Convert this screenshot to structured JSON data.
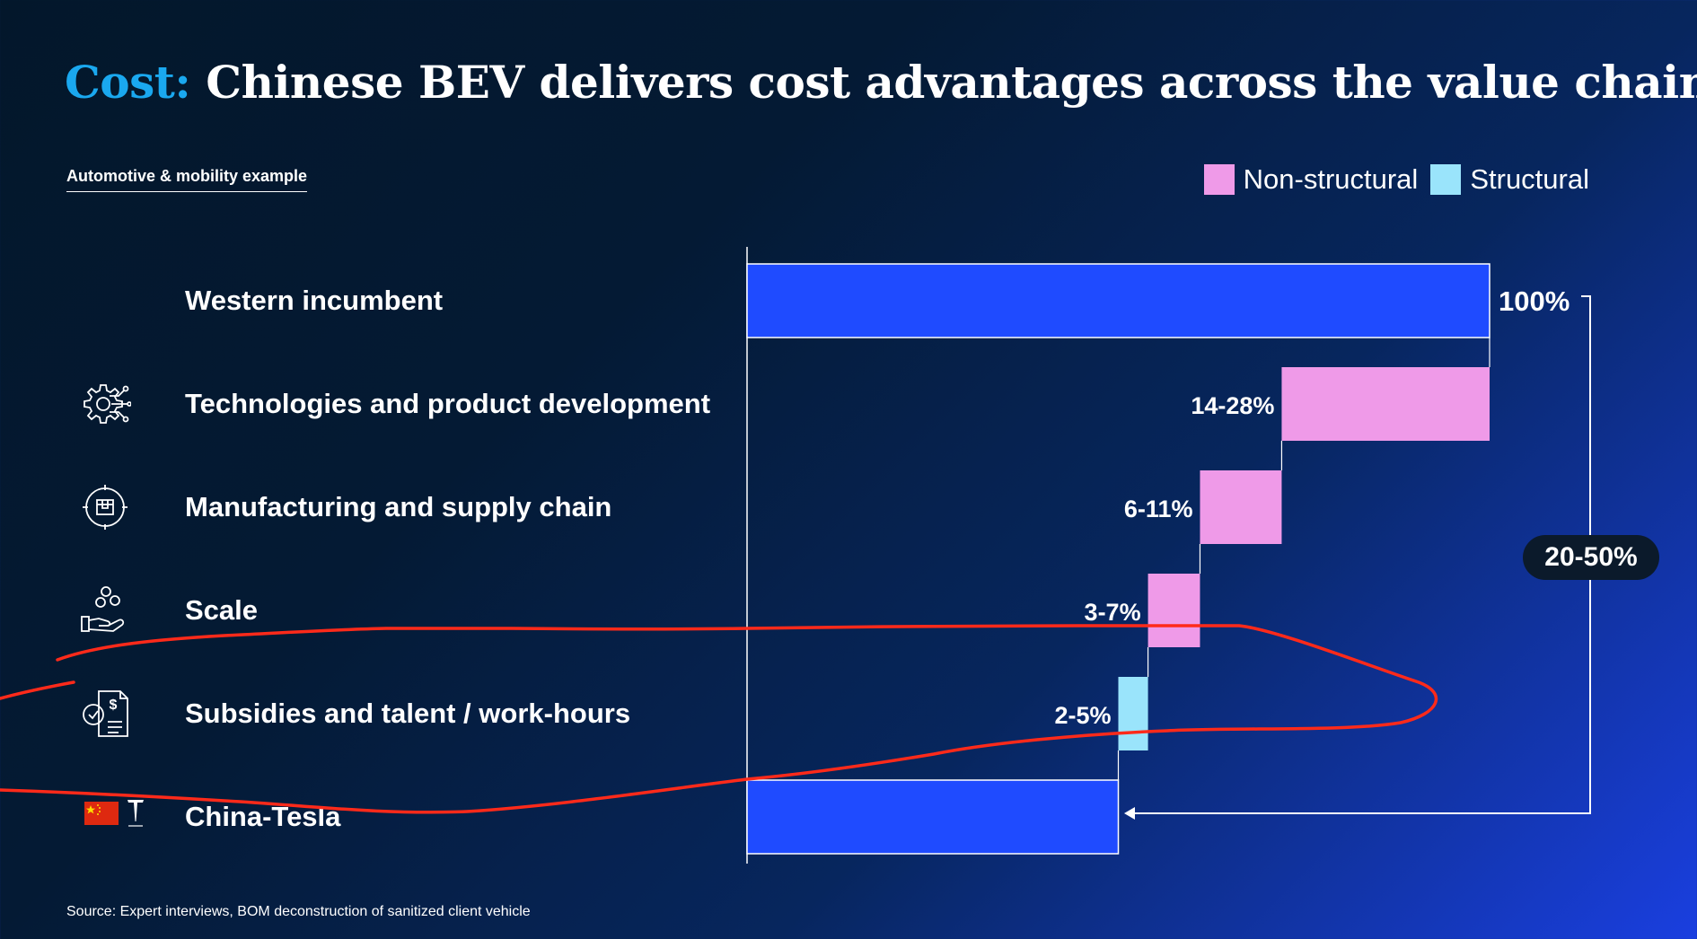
{
  "header": {
    "title_accent": "Cost:",
    "title_rest": "Chinese BEV delivers cost advantages across the value chain",
    "subtitle": "Automotive & mobility example",
    "source": "Source: Expert interviews, BOM deconstruction of sanitized client vehicle"
  },
  "legend": [
    {
      "label": "Non-structural",
      "color": "#ef9ae8"
    },
    {
      "label": "Structural",
      "color": "#9ae4fb"
    }
  ],
  "rows": [
    {
      "label": "Western incumbent",
      "icon": "none"
    },
    {
      "label": "Technologies and product development",
      "icon": "gear-circuit-icon"
    },
    {
      "label": "Manufacturing and supply chain",
      "icon": "package-target-icon"
    },
    {
      "label": "Scale",
      "icon": "hand-coins-icon"
    },
    {
      "label": "Subsidies and talent / work-hours",
      "icon": "document-dollar-icon"
    },
    {
      "label": "China-Tesla",
      "icon": "china-flag-tesla-logo-icon"
    }
  ],
  "chart_data": {
    "type": "waterfall",
    "title": "Chinese BEV delivers cost advantages across the value chain",
    "categories": [
      "Western incumbent",
      "Technologies and product development",
      "Manufacturing and supply chain",
      "Scale",
      "Subsidies and talent / work-hours",
      "China-Tesla"
    ],
    "bars": [
      {
        "category": "Western incumbent",
        "kind": "total",
        "start": 0,
        "end": 100,
        "label": "100%",
        "color": "#1f4bff"
      },
      {
        "category": "Technologies and product development",
        "kind": "decrease",
        "start": 100,
        "end": 72,
        "label": "14-28%",
        "series": "Non-structural",
        "color": "#ef9ae8"
      },
      {
        "category": "Manufacturing and supply chain",
        "kind": "decrease",
        "start": 72,
        "end": 61,
        "label": "6-11%",
        "series": "Non-structural",
        "color": "#ef9ae8"
      },
      {
        "category": "Scale",
        "kind": "decrease",
        "start": 61,
        "end": 54,
        "label": "3-7%",
        "series": "Non-structural",
        "color": "#ef9ae8"
      },
      {
        "category": "Subsidies and talent / work-hours",
        "kind": "decrease",
        "start": 54,
        "end": 50,
        "label": "2-5%",
        "series": "Structural",
        "color": "#9ae4fb"
      },
      {
        "category": "China-Tesla",
        "kind": "total",
        "start": 0,
        "end": 50,
        "label": "",
        "color": "#1f4bff"
      }
    ],
    "total_difference_label": "20-50%",
    "xlim": [
      0,
      100
    ],
    "grid": false,
    "legend_position": "top-right"
  },
  "annotation": {
    "stroke_color": "#ff2a1a"
  }
}
